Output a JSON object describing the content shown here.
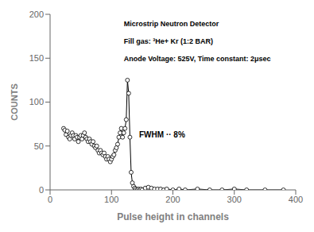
{
  "chart_data": {
    "type": "line",
    "title": "",
    "xlabel": "Pulse height in channels",
    "ylabel": "COUNTS",
    "xlim": [
      0,
      400
    ],
    "ylim": [
      0,
      200
    ],
    "xticks": [
      0,
      100,
      200,
      300,
      400
    ],
    "yticks": [
      0,
      50,
      100,
      150,
      200
    ],
    "grid": false,
    "annotations": [
      "Microstrip Neutron Detector",
      "Fill gas: ³He+ Kr (1:2 BAR)",
      "Anode Voltage: 525V, Time constant: 2μsec",
      "FWHM ·· 8%"
    ],
    "color": "black",
    "marker": "circle",
    "line_style": "solid",
    "x": [
      22,
      24,
      26,
      28,
      30,
      32,
      34,
      36,
      38,
      40,
      42,
      44,
      46,
      48,
      50,
      52,
      54,
      56,
      58,
      60,
      62,
      64,
      66,
      68,
      70,
      72,
      74,
      76,
      78,
      80,
      82,
      84,
      86,
      88,
      90,
      92,
      94,
      96,
      98,
      100,
      102,
      104,
      106,
      108,
      110,
      112,
      114,
      116,
      118,
      120,
      122,
      124,
      126,
      128,
      130,
      132,
      134,
      136,
      138,
      140,
      142,
      144,
      146,
      148,
      150,
      155,
      160,
      165,
      170,
      175,
      180,
      185,
      190,
      200,
      210,
      220,
      240,
      260,
      280,
      300,
      320,
      350,
      380
    ],
    "values": [
      70,
      68,
      63,
      67,
      60,
      58,
      62,
      65,
      62,
      58,
      62,
      60,
      55,
      60,
      62,
      58,
      62,
      65,
      60,
      58,
      55,
      58,
      55,
      52,
      55,
      50,
      48,
      50,
      45,
      42,
      45,
      42,
      40,
      42,
      38,
      35,
      38,
      35,
      32,
      35,
      38,
      40,
      45,
      48,
      52,
      60,
      65,
      70,
      60,
      65,
      70,
      80,
      125,
      110,
      60,
      20,
      8,
      4,
      2,
      1,
      0,
      1,
      0,
      1,
      0,
      2,
      3,
      2,
      1,
      1,
      1,
      0,
      1,
      0,
      1,
      0,
      1,
      0,
      0,
      1,
      0,
      0,
      0
    ]
  }
}
